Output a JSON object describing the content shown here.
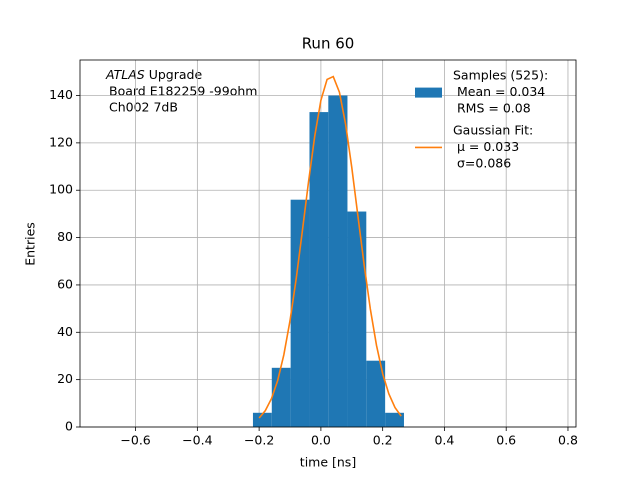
{
  "chart_data": {
    "type": "histogram",
    "title": "Run 60",
    "xlabel": "time [ns]",
    "ylabel": "Entries",
    "annotation": [
      "ATLAS",
      "Upgrade",
      "Board E182259 -99ohm",
      "Ch002 7dB"
    ],
    "xlim": [
      -0.78,
      0.826
    ],
    "ylim": [
      0,
      155
    ],
    "xticks": [
      {
        "value": -0.6,
        "label": "−0.6"
      },
      {
        "value": -0.4,
        "label": "−0.4"
      },
      {
        "value": -0.2,
        "label": "−0.2"
      },
      {
        "value": 0,
        "label": "0.0"
      },
      0.2,
      0.4,
      0.6,
      0.8
    ],
    "yticks": [
      0,
      20,
      40,
      60,
      80,
      100,
      120,
      140
    ],
    "grid": true,
    "legend": "upper right",
    "series": [
      {
        "type": "histogram",
        "name": [
          "Samples (525):",
          "Mean = 0.034",
          "RMS = 0.08"
        ],
        "color": "#1f77b4",
        "bins": [
          -0.22,
          -0.159,
          -0.098,
          -0.037,
          0.024,
          0.086,
          0.147,
          0.208,
          0.269
        ],
        "counts": [
          6,
          25,
          96,
          133,
          140,
          91,
          28,
          6
        ]
      },
      {
        "type": "line",
        "name": [
          "Gaussian Fit:",
          "μ = 0.033",
          "σ=0.086"
        ],
        "color": "#ff7f0e",
        "x": [
          -0.2,
          -0.18,
          -0.16,
          -0.14,
          -0.12,
          -0.1,
          -0.08,
          -0.06,
          -0.04,
          -0.02,
          0,
          0.02,
          0.04,
          0.06,
          0.08,
          0.1,
          0.12,
          0.14,
          0.16,
          0.18,
          0.2,
          0.22,
          0.24,
          0.26
        ],
        "y": [
          3.8,
          6.9,
          12.0,
          19.6,
          30.5,
          44.9,
          62.6,
          82.8,
          103.6,
          122.8,
          138.0,
          146.8,
          148.0,
          141.4,
          127.9,
          109.6,
          89.0,
          68.5,
          49.9,
          34.5,
          22.5,
          14.0,
          8.2,
          4.6
        ]
      }
    ]
  }
}
